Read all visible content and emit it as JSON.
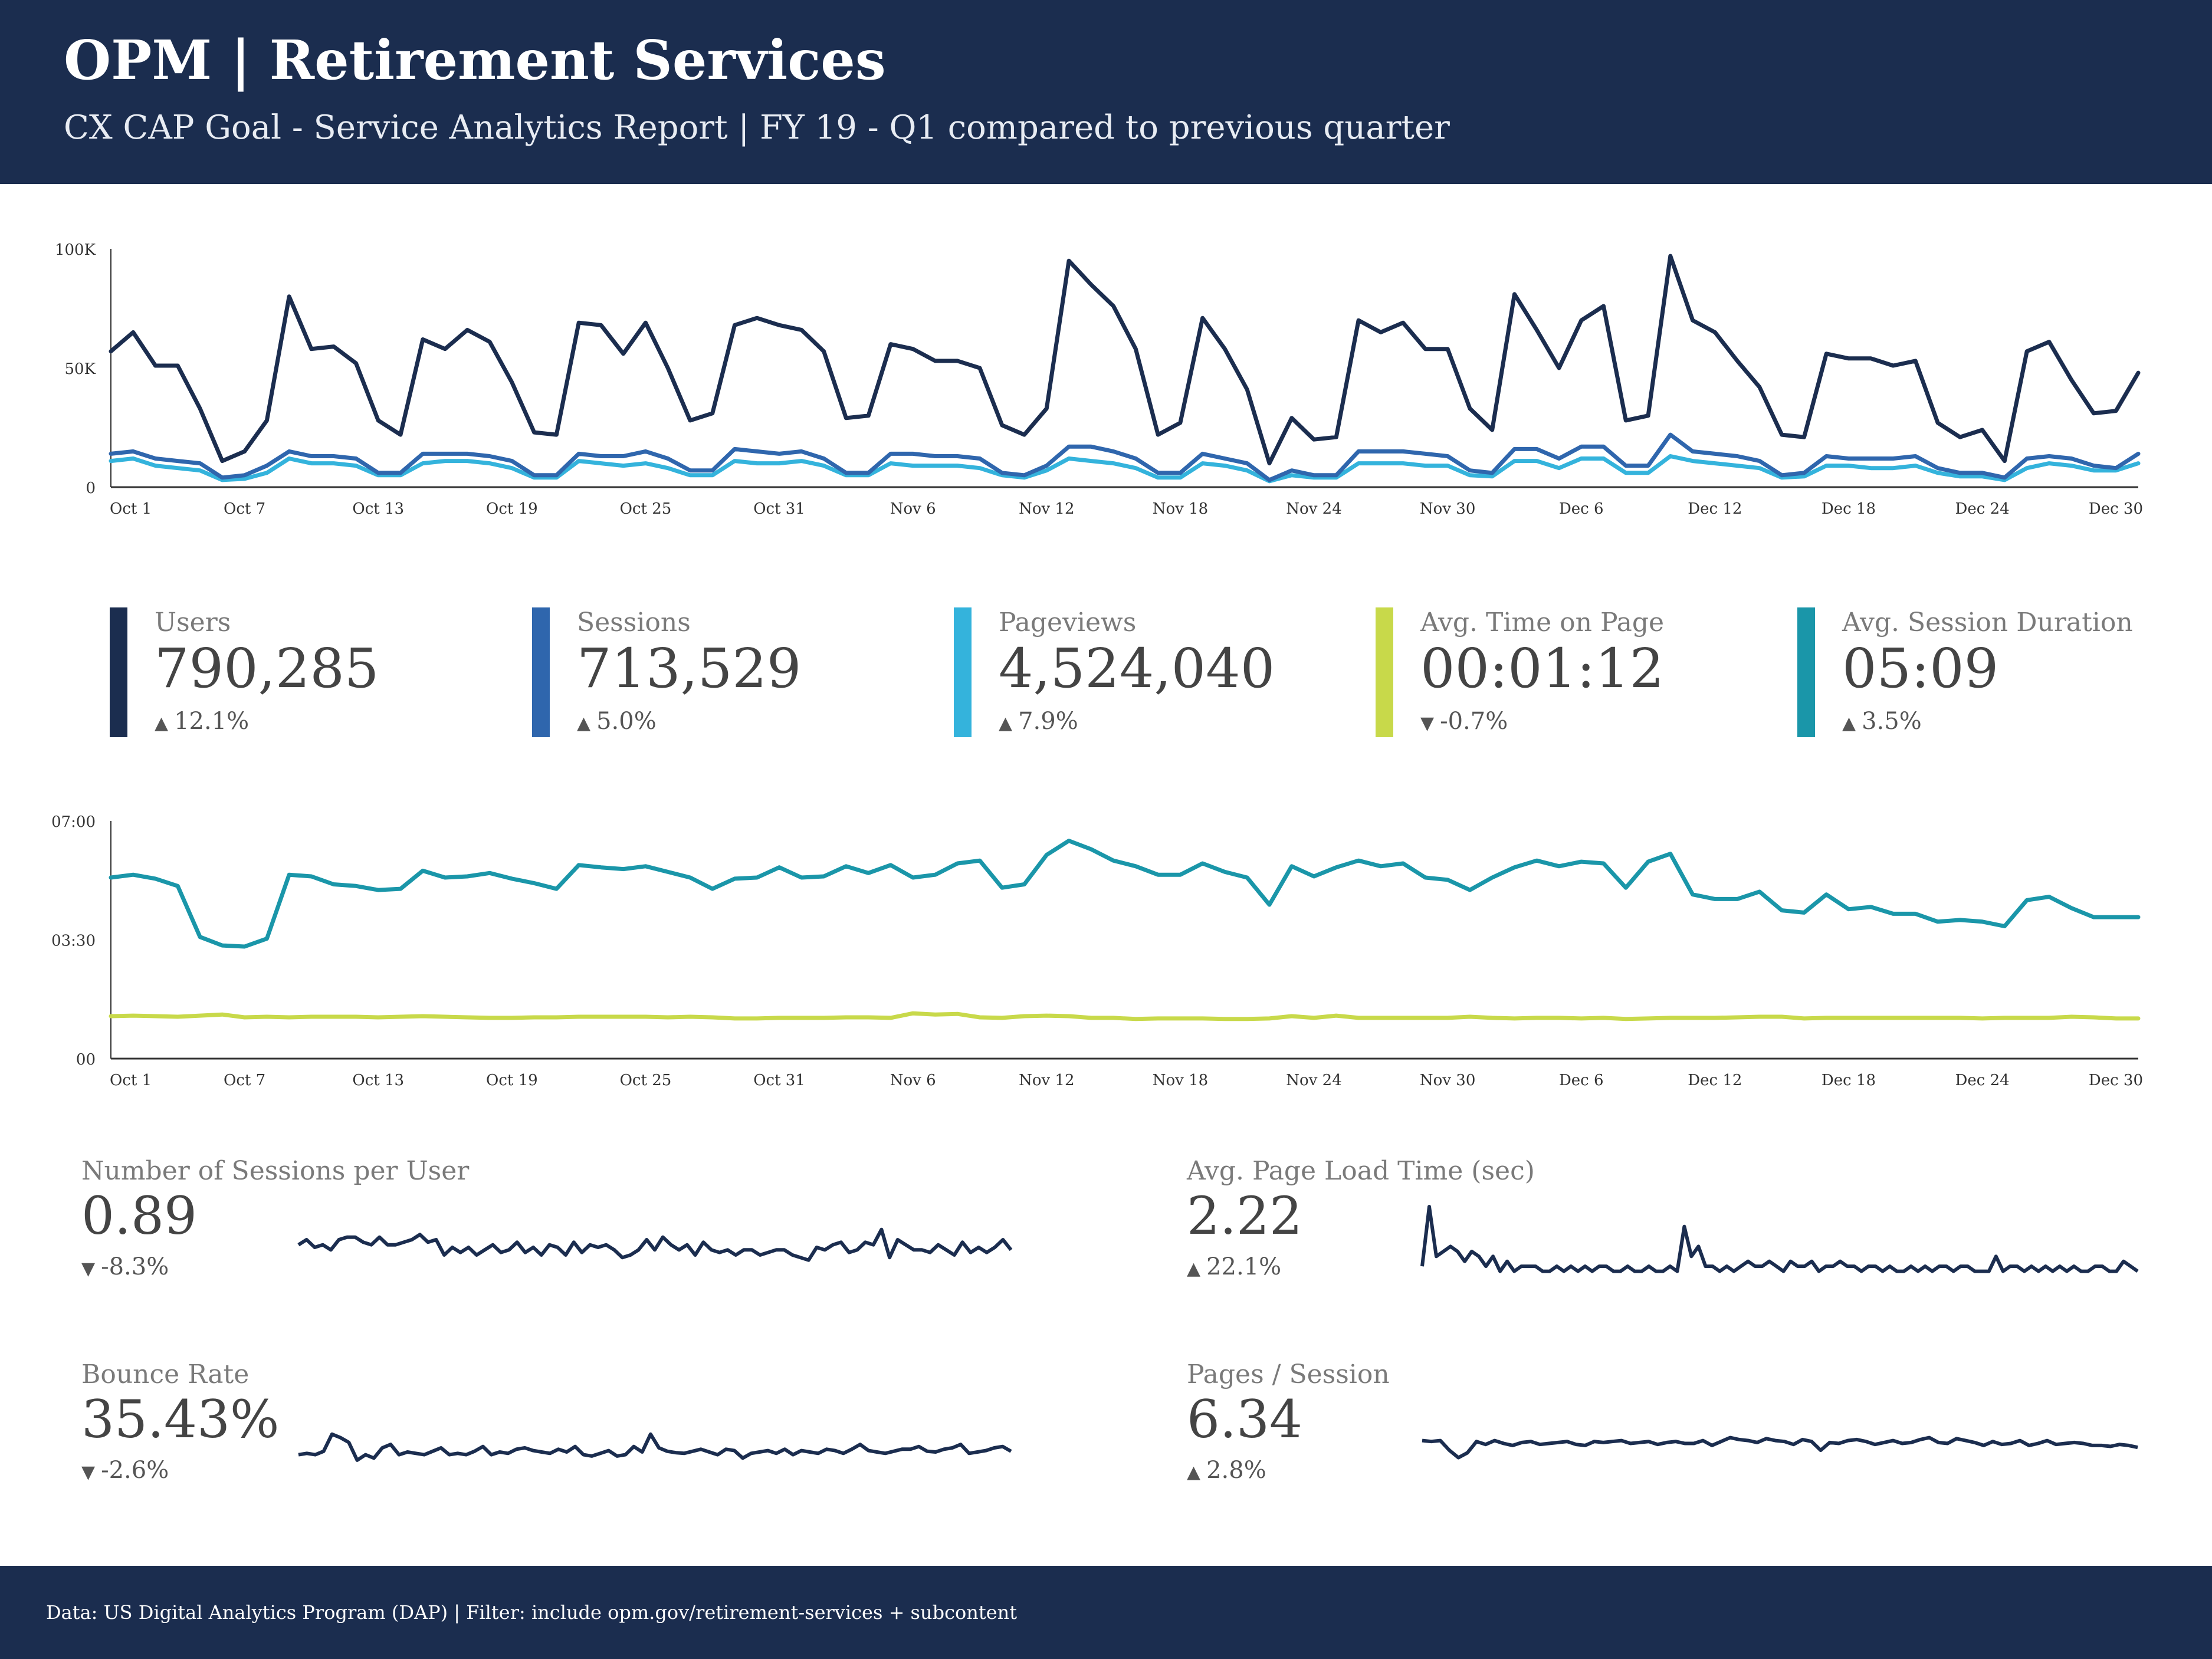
{
  "header": {
    "title": "OPM | Retirement Services",
    "subtitle": "CX CAP Goal - Service Analytics Report | FY 19 - Q1 compared to previous quarter"
  },
  "footer": {
    "text": "Data: US Digital Analytics Program (DAP) | Filter: include opm.gov/retirement-services + subcontent"
  },
  "colors": {
    "users": "#1b2d4f",
    "sessions": "#2f66ad",
    "pageviews": "#34b3dc",
    "avg_time_on_page": "#c8d94a",
    "avg_session_duration": "#1a96a9",
    "sparkline": "#1b2d4f"
  },
  "kpis": [
    {
      "label": "Users",
      "value": "790,285",
      "delta": "12.1%",
      "direction": "up",
      "color": "#1b2d4f"
    },
    {
      "label": "Sessions",
      "value": "713,529",
      "delta": "5.0%",
      "direction": "up",
      "color": "#2f66ad"
    },
    {
      "label": "Pageviews",
      "value": "4,524,040",
      "delta": "7.9%",
      "direction": "up",
      "color": "#34b3dc"
    },
    {
      "label": "Avg. Time on Page",
      "value": "00:01:12",
      "delta": "-0.7%",
      "direction": "down",
      "color": "#c8d94a"
    },
    {
      "label": "Avg. Session Duration",
      "value": "05:09",
      "delta": "3.5%",
      "direction": "up",
      "color": "#1a96a9"
    }
  ],
  "metrics": [
    {
      "label": "Number of Sessions per User",
      "value": "0.89",
      "delta": "-8.3%",
      "direction": "down"
    },
    {
      "label": "Avg. Page Load Time (sec)",
      "value": "2.22",
      "delta": "22.1%",
      "direction": "up"
    },
    {
      "label": "Bounce Rate",
      "value": "35.43%",
      "delta": "-2.6%",
      "direction": "down"
    },
    {
      "label": "Pages / Session",
      "value": "6.34",
      "delta": "2.8%",
      "direction": "up"
    }
  ],
  "chart_data": [
    {
      "type": "line",
      "x_ticks": [
        "Oct 1",
        "Oct 7",
        "Oct 13",
        "Oct 19",
        "Oct 25",
        "Oct 31",
        "Nov 6",
        "Nov 12",
        "Nov 18",
        "Nov 24",
        "Nov 30",
        "Dec 6",
        "Dec 12",
        "Dec 18",
        "Dec 24",
        "Dec 30"
      ],
      "x_start": "Oct 1",
      "x_end": "Dec 31",
      "y_ticks": [
        "0",
        "50K",
        "100K"
      ],
      "ylim": [
        0,
        100000
      ],
      "series": [
        {
          "name": "Users",
          "color": "#1b2d4f",
          "values": [
            57000,
            65000,
            51000,
            51000,
            33000,
            11000,
            15000,
            28000,
            80000,
            58000,
            59000,
            52000,
            28000,
            22000,
            62000,
            58000,
            66000,
            61000,
            44000,
            23000,
            22000,
            69000,
            68000,
            56000,
            69000,
            50000,
            28000,
            31000,
            68000,
            71000,
            68000,
            66000,
            57000,
            29000,
            30000,
            60000,
            58000,
            53000,
            53000,
            50000,
            26000,
            22000,
            33000,
            95000,
            85000,
            76000,
            58000,
            22000,
            27000,
            71000,
            58000,
            41000,
            10000,
            29000,
            20000,
            21000,
            70000,
            65000,
            69000,
            58000,
            58000,
            33000,
            24000,
            81000,
            66000,
            50000,
            70000,
            76000,
            28000,
            30000,
            97000,
            70000,
            65000,
            53000,
            42000,
            22000,
            21000,
            56000,
            54000,
            54000,
            51000,
            53000,
            27000,
            21000,
            24000,
            11000,
            57000,
            61000,
            45000,
            31000,
            32000,
            48000
          ]
        },
        {
          "name": "Sessions",
          "color": "#2f66ad",
          "values": [
            14000,
            15000,
            12000,
            11000,
            10000,
            4000,
            5000,
            9000,
            15000,
            13000,
            13000,
            12000,
            6000,
            6000,
            14000,
            14000,
            14000,
            13000,
            11000,
            5000,
            5000,
            14000,
            13000,
            13000,
            15000,
            12000,
            7000,
            7000,
            16000,
            15000,
            14000,
            15000,
            12000,
            6000,
            6000,
            14000,
            14000,
            13000,
            13000,
            12000,
            6000,
            5000,
            9000,
            17000,
            17000,
            15000,
            12000,
            6000,
            6000,
            14000,
            12000,
            10000,
            3000,
            7000,
            5000,
            5000,
            15000,
            15000,
            15000,
            14000,
            13000,
            7000,
            6000,
            16000,
            16000,
            12000,
            17000,
            17000,
            9000,
            9000,
            22000,
            15000,
            14000,
            13000,
            11000,
            5000,
            6000,
            13000,
            12000,
            12000,
            12000,
            13000,
            8000,
            6000,
            6000,
            4000,
            12000,
            13000,
            12000,
            9000,
            8000,
            14000
          ]
        },
        {
          "name": "Pageviews",
          "color": "#34b3dc",
          "values": [
            11000,
            12000,
            9000,
            8000,
            7000,
            3000,
            3500,
            6000,
            12000,
            10000,
            10000,
            9000,
            5000,
            5000,
            10000,
            11000,
            11000,
            10000,
            8000,
            4000,
            4000,
            11000,
            10000,
            9000,
            10000,
            8000,
            5000,
            5000,
            11000,
            10000,
            10000,
            11000,
            9000,
            5000,
            5000,
            10000,
            9000,
            9000,
            9000,
            8000,
            5000,
            4000,
            7000,
            12000,
            11000,
            10000,
            8000,
            4000,
            4000,
            10000,
            9000,
            7000,
            2500,
            5000,
            4000,
            4000,
            10000,
            10000,
            10000,
            9000,
            9000,
            5000,
            4500,
            11000,
            11000,
            8000,
            12000,
            12000,
            6000,
            6000,
            13000,
            11000,
            10000,
            9000,
            8000,
            4000,
            4500,
            9000,
            9000,
            8000,
            8000,
            9000,
            6000,
            4500,
            4500,
            3000,
            8000,
            10000,
            9000,
            7000,
            7000,
            10000
          ]
        }
      ]
    },
    {
      "type": "line",
      "x_ticks": [
        "Oct 1",
        "Oct 7",
        "Oct 13",
        "Oct 19",
        "Oct 25",
        "Oct 31",
        "Nov 6",
        "Nov 12",
        "Nov 18",
        "Nov 24",
        "Nov 30",
        "Dec 6",
        "Dec 12",
        "Dec 18",
        "Dec 24",
        "Dec 30"
      ],
      "x_start": "Oct 1",
      "x_end": "Dec 31",
      "y_ticks": [
        "00",
        "03:30",
        "07:00"
      ],
      "y_unit": "seconds",
      "ylim": [
        0,
        420
      ],
      "series": [
        {
          "name": "Avg. Session Duration",
          "color": "#1a96a9",
          "values": [
            320,
            325,
            318,
            305,
            215,
            200,
            198,
            212,
            325,
            322,
            308,
            305,
            298,
            300,
            332,
            320,
            322,
            328,
            318,
            310,
            300,
            342,
            338,
            335,
            340,
            330,
            320,
            300,
            318,
            320,
            338,
            320,
            322,
            340,
            328,
            342,
            320,
            325,
            345,
            350,
            302,
            308,
            360,
            385,
            370,
            350,
            340,
            325,
            325,
            345,
            330,
            320,
            272,
            340,
            322,
            338,
            350,
            340,
            345,
            320,
            316,
            298,
            320,
            338,
            350,
            340,
            348,
            345,
            302,
            348,
            362,
            290,
            282,
            282,
            295,
            262,
            258,
            290,
            264,
            268,
            256,
            256,
            242,
            245,
            242,
            234,
            280,
            286,
            266,
            250,
            250,
            250
          ]
        },
        {
          "name": "Avg. Time on Page",
          "color": "#c8d94a",
          "values": [
            75,
            76,
            75,
            74,
            76,
            78,
            73,
            74,
            73,
            74,
            74,
            74,
            73,
            74,
            75,
            74,
            73,
            72,
            72,
            73,
            73,
            74,
            74,
            74,
            74,
            73,
            74,
            73,
            71,
            71,
            72,
            72,
            72,
            73,
            73,
            72,
            80,
            78,
            79,
            73,
            72,
            75,
            76,
            75,
            72,
            72,
            70,
            71,
            71,
            71,
            70,
            70,
            71,
            75,
            72,
            76,
            72,
            72,
            72,
            72,
            72,
            74,
            72,
            71,
            72,
            72,
            71,
            72,
            70,
            71,
            72,
            72,
            72,
            73,
            74,
            74,
            71,
            72,
            72,
            72,
            72,
            72,
            72,
            72,
            71,
            72,
            72,
            72,
            74,
            73,
            71,
            71
          ]
        }
      ]
    },
    {
      "type": "line",
      "title": "Number of Sessions per User",
      "values": [
        0.9,
        0.92,
        0.89,
        0.9,
        0.88,
        0.92,
        0.93,
        0.93,
        0.91,
        0.9,
        0.93,
        0.9,
        0.9,
        0.91,
        0.92,
        0.94,
        0.91,
        0.92,
        0.86,
        0.89,
        0.87,
        0.89,
        0.86,
        0.88,
        0.9,
        0.87,
        0.88,
        0.91,
        0.87,
        0.89,
        0.86,
        0.9,
        0.89,
        0.86,
        0.91,
        0.87,
        0.9,
        0.89,
        0.9,
        0.88,
        0.85,
        0.86,
        0.88,
        0.92,
        0.88,
        0.93,
        0.9,
        0.88,
        0.9,
        0.86,
        0.91,
        0.88,
        0.87,
        0.88,
        0.86,
        0.88,
        0.88,
        0.86,
        0.87,
        0.88,
        0.88,
        0.86,
        0.85,
        0.84,
        0.89,
        0.88,
        0.9,
        0.91,
        0.87,
        0.88,
        0.91,
        0.9,
        0.96,
        0.85,
        0.92,
        0.9,
        0.88,
        0.88,
        0.87,
        0.9,
        0.88,
        0.86,
        0.91,
        0.87,
        0.89,
        0.87,
        0.89,
        0.92,
        0.88
      ]
    },
    {
      "type": "line",
      "title": "Avg. Page Load Time (sec)",
      "values": [
        2.2,
        3.4,
        2.4,
        2.5,
        2.6,
        2.5,
        2.3,
        2.5,
        2.4,
        2.2,
        2.4,
        2.1,
        2.3,
        2.1,
        2.2,
        2.2,
        2.2,
        2.1,
        2.1,
        2.2,
        2.1,
        2.2,
        2.1,
        2.2,
        2.1,
        2.2,
        2.2,
        2.1,
        2.1,
        2.2,
        2.1,
        2.1,
        2.2,
        2.1,
        2.1,
        2.2,
        2.1,
        3.0,
        2.4,
        2.6,
        2.2,
        2.2,
        2.1,
        2.2,
        2.1,
        2.2,
        2.3,
        2.2,
        2.2,
        2.3,
        2.2,
        2.1,
        2.3,
        2.2,
        2.2,
        2.3,
        2.1,
        2.2,
        2.2,
        2.3,
        2.2,
        2.2,
        2.1,
        2.2,
        2.2,
        2.1,
        2.2,
        2.1,
        2.1,
        2.2,
        2.1,
        2.2,
        2.1,
        2.2,
        2.2,
        2.1,
        2.2,
        2.2,
        2.1,
        2.1,
        2.1,
        2.4,
        2.1,
        2.2,
        2.2,
        2.1,
        2.2,
        2.1,
        2.2,
        2.1,
        2.2,
        2.1,
        2.2,
        2.1,
        2.1,
        2.2,
        2.2,
        2.1,
        2.1,
        2.3,
        2.2,
        2.1
      ]
    },
    {
      "type": "line",
      "title": "Bounce Rate",
      "values": [
        35.0,
        35.2,
        35.0,
        35.5,
        38.0,
        37.5,
        36.8,
        34.2,
        35.0,
        34.5,
        36.0,
        36.5,
        35.0,
        35.4,
        35.2,
        35.0,
        35.5,
        36.0,
        35.0,
        35.2,
        35.0,
        35.5,
        36.2,
        35.0,
        35.4,
        35.2,
        35.8,
        36.0,
        35.6,
        35.4,
        35.2,
        35.8,
        35.4,
        36.2,
        35.0,
        34.8,
        35.2,
        35.6,
        34.8,
        35.0,
        36.2,
        35.4,
        38.0,
        36.0,
        35.5,
        35.3,
        35.2,
        35.5,
        35.8,
        35.4,
        35.0,
        35.8,
        35.6,
        34.5,
        35.2,
        35.4,
        35.6,
        35.2,
        35.8,
        35.0,
        35.6,
        35.4,
        35.2,
        35.8,
        35.6,
        35.2,
        35.8,
        36.5,
        35.6,
        35.4,
        35.2,
        35.5,
        35.8,
        35.8,
        36.2,
        35.5,
        35.4,
        35.8,
        36.0,
        36.5,
        35.2,
        35.4,
        35.6,
        36.0,
        36.2,
        35.5
      ]
    },
    {
      "type": "line",
      "title": "Pages / Session",
      "values": [
        6.4,
        6.38,
        6.4,
        6.2,
        6.05,
        6.15,
        6.38,
        6.32,
        6.4,
        6.34,
        6.3,
        6.36,
        6.38,
        6.32,
        6.34,
        6.36,
        6.38,
        6.32,
        6.3,
        6.38,
        6.36,
        6.38,
        6.4,
        6.34,
        6.36,
        6.38,
        6.32,
        6.36,
        6.38,
        6.34,
        6.34,
        6.4,
        6.3,
        6.38,
        6.46,
        6.42,
        6.4,
        6.36,
        6.44,
        6.4,
        6.38,
        6.32,
        6.42,
        6.38,
        6.2,
        6.36,
        6.34,
        6.4,
        6.42,
        6.38,
        6.32,
        6.36,
        6.4,
        6.34,
        6.36,
        6.42,
        6.46,
        6.36,
        6.34,
        6.44,
        6.4,
        6.36,
        6.3,
        6.38,
        6.32,
        6.34,
        6.4,
        6.3,
        6.34,
        6.4,
        6.32,
        6.34,
        6.36,
        6.34,
        6.3,
        6.3,
        6.28,
        6.32,
        6.3,
        6.26
      ]
    }
  ]
}
